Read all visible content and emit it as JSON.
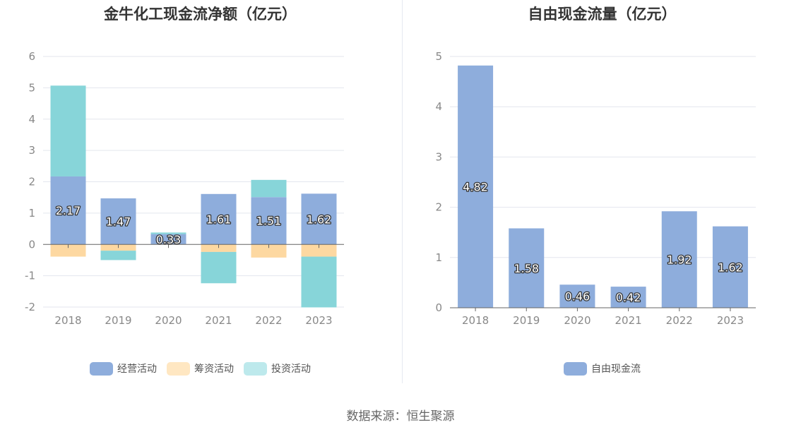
{
  "chart_data": [
    {
      "type": "bar",
      "stacked": true,
      "title": "金牛化工现金流净额（亿元）",
      "categories": [
        "2018",
        "2019",
        "2020",
        "2021",
        "2022",
        "2023"
      ],
      "ylim": [
        -2,
        6
      ],
      "yticks": [
        6,
        5,
        4,
        3,
        2,
        1,
        0,
        -1,
        -2
      ],
      "grid": true,
      "legend": "bottom",
      "labeled_series": "经营活动",
      "series": [
        {
          "name": "经营活动",
          "color": "#8eaddc",
          "values": [
            2.17,
            1.47,
            0.33,
            1.61,
            1.51,
            1.62
          ]
        },
        {
          "name": "筹资活动",
          "color": "#fdd8a1",
          "values": [
            -0.39,
            -0.2,
            0,
            -0.24,
            -0.42,
            -0.39
          ]
        },
        {
          "name": "投资活动",
          "color": "#87d5d9",
          "values": [
            2.9,
            -0.3,
            0.05,
            -1.0,
            0.55,
            -1.62
          ]
        }
      ]
    },
    {
      "type": "bar",
      "title": "自由现金流量（亿元）",
      "categories": [
        "2018",
        "2019",
        "2020",
        "2021",
        "2022",
        "2023"
      ],
      "ylim": [
        0,
        5
      ],
      "yticks": [
        5,
        4,
        3,
        2,
        1,
        0
      ],
      "grid": true,
      "legend": "bottom",
      "labeled_series": "自由现金流",
      "series": [
        {
          "name": "自由现金流",
          "color": "#8eaddc",
          "values": [
            4.82,
            1.58,
            0.46,
            0.42,
            1.92,
            1.62
          ]
        }
      ]
    }
  ],
  "legend_left": [
    {
      "label": "经营活动",
      "color": "#8eaddc"
    },
    {
      "label": "筹资活动",
      "color": "#ffe7c2"
    },
    {
      "label": "投资活动",
      "color": "#bde9ec"
    }
  ],
  "legend_right": [
    {
      "label": "自由现金流",
      "color": "#8eaddc"
    }
  ],
  "source": "数据来源：恒生聚源"
}
